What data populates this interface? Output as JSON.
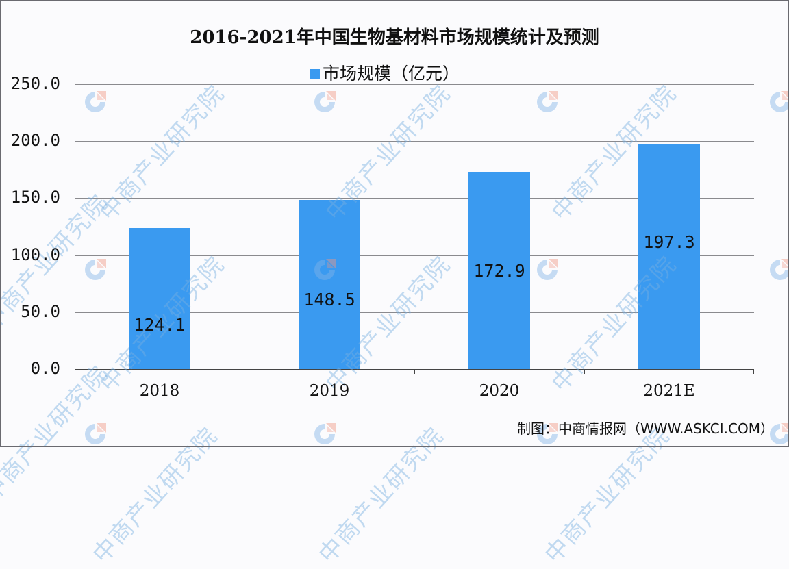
{
  "chart_data": {
    "type": "bar",
    "title": "2016-2021年中国生物基材料市场规模统计及预测",
    "categories": [
      "2018",
      "2019",
      "2020",
      "2021E"
    ],
    "series": [
      {
        "name": "市场规模（亿元）",
        "values": [
          124.1,
          148.5,
          172.9,
          197.3
        ],
        "color": "#3a9af0"
      }
    ],
    "data_labels": [
      "124.1",
      "148.5",
      "172.9",
      "197.3"
    ],
    "xlabel": "",
    "ylabel": "",
    "ylim": [
      0,
      250
    ],
    "yticks": [
      "0.0",
      "50.0",
      "100.0",
      "150.0",
      "200.0",
      "250.0"
    ],
    "grid": true,
    "legend_position": "top-center"
  },
  "header": {
    "title": "2016-2021年中国生物基材料市场规模统计及预测"
  },
  "legend": {
    "label": "市场规模（亿元）",
    "color": "#3a9af0"
  },
  "footer": {
    "source": "制图：中商情报网（WWW.ASKCI.COM）"
  },
  "watermark": {
    "text": "中商产业研究院"
  }
}
